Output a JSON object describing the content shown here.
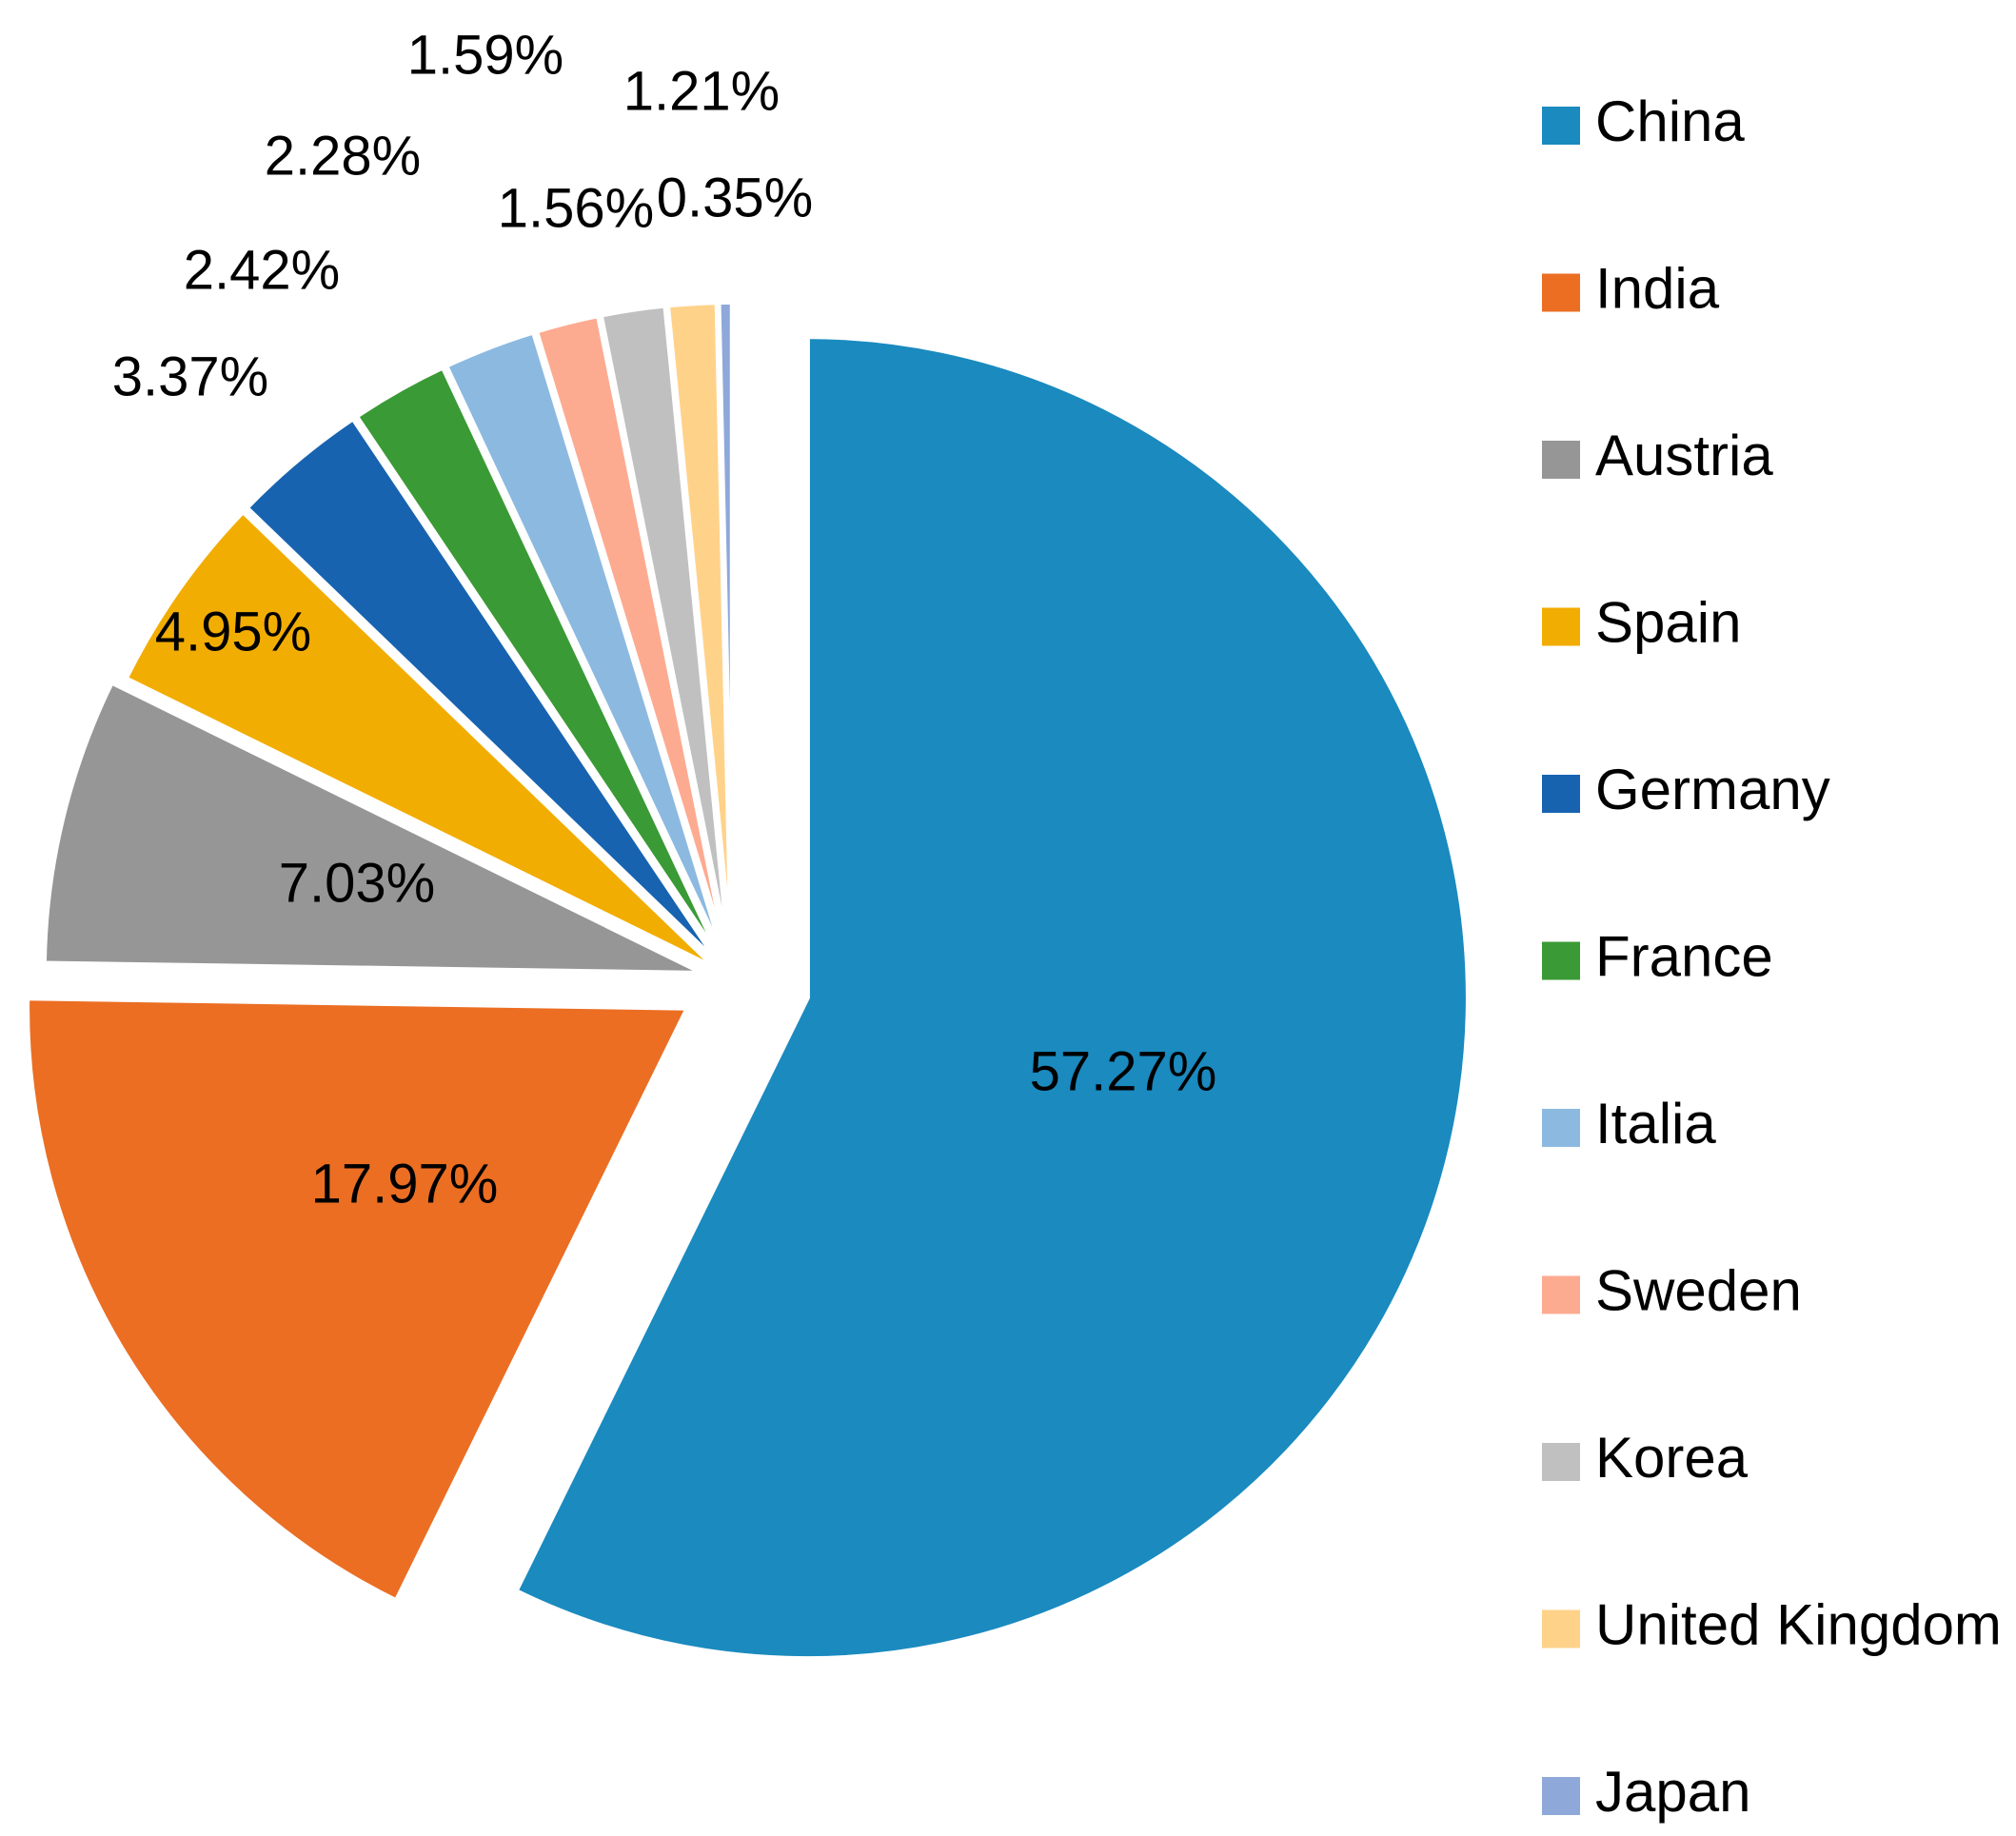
{
  "chart_data": {
    "type": "pie",
    "categories": [
      "China",
      "India",
      "Austria",
      "Spain",
      "Germany",
      "France",
      "Italia",
      "Sweden",
      "Korea",
      "United Kingdom",
      "Japan"
    ],
    "values": [
      57.27,
      17.97,
      7.03,
      4.95,
      3.37,
      2.42,
      2.28,
      1.56,
      1.59,
      1.21,
      0.35
    ],
    "value_labels": [
      "57.27%",
      "17.97%",
      "7.03%",
      "4.95%",
      "3.37%",
      "2.42%",
      "2.28%",
      "1.56%",
      "1.59%",
      "1.21%",
      "0.35%"
    ],
    "colors": [
      "#1A8ABF",
      "#EB6E23",
      "#969696",
      "#F2AD03",
      "#1763B0",
      "#3A9A35",
      "#8CB9E0",
      "#FCAB91",
      "#C0C0C0",
      "#FFD28A",
      "#8FA8DA"
    ],
    "start_angle": "12 o'clock",
    "direction": "clockwise",
    "legend_position": "right"
  }
}
